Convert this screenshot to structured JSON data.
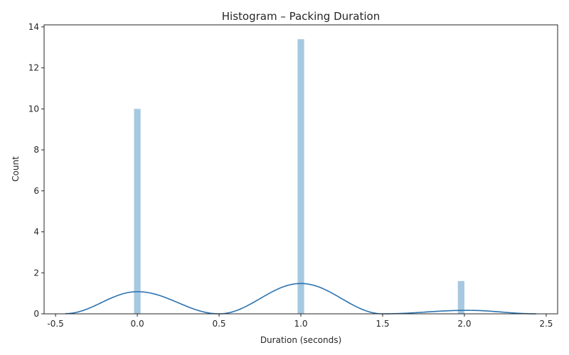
{
  "chart_data": {
    "type": "bar",
    "title": "Histogram – Packing Duration",
    "xlabel": "Duration (seconds)",
    "ylabel": "Count",
    "xlim": [
      -0.57,
      2.57
    ],
    "ylim": [
      0,
      14.1
    ],
    "x_ticks": [
      {
        "value": -0.5,
        "label": "-0.5"
      },
      {
        "value": 0.0,
        "label": "0.0"
      },
      {
        "value": 0.5,
        "label": "0.5"
      },
      {
        "value": 1.0,
        "label": "1.0"
      },
      {
        "value": 1.5,
        "label": "1.5"
      },
      {
        "value": 2.0,
        "label": "2.0"
      },
      {
        "value": 2.5,
        "label": "2.5"
      }
    ],
    "y_ticks": [
      {
        "value": 0,
        "label": "0"
      },
      {
        "value": 2,
        "label": "2"
      },
      {
        "value": 4,
        "label": "4"
      },
      {
        "value": 6,
        "label": "6"
      },
      {
        "value": 8,
        "label": "8"
      },
      {
        "value": 10,
        "label": "10"
      },
      {
        "value": 12,
        "label": "12"
      },
      {
        "value": 14,
        "label": "14"
      }
    ],
    "bars": [
      {
        "x_start": -0.02,
        "x_end": 0.02,
        "value": 10.0
      },
      {
        "x_start": 0.98,
        "x_end": 1.02,
        "value": 13.4
      },
      {
        "x_start": 1.96,
        "x_end": 2.0,
        "value": 1.6
      }
    ],
    "bar_color": "#a6c8e0",
    "kde_color": "#2b73b0",
    "kde": [
      {
        "x": -0.44,
        "y": 0.01
      },
      {
        "x": 0.0,
        "y": 1.08
      },
      {
        "x": 0.5,
        "y": 0.0
      },
      {
        "x": 1.0,
        "y": 1.48
      },
      {
        "x": 1.5,
        "y": 0.0
      },
      {
        "x": 2.02,
        "y": 0.17
      },
      {
        "x": 2.44,
        "y": 0.0
      }
    ],
    "grid": false,
    "legend": "none"
  }
}
